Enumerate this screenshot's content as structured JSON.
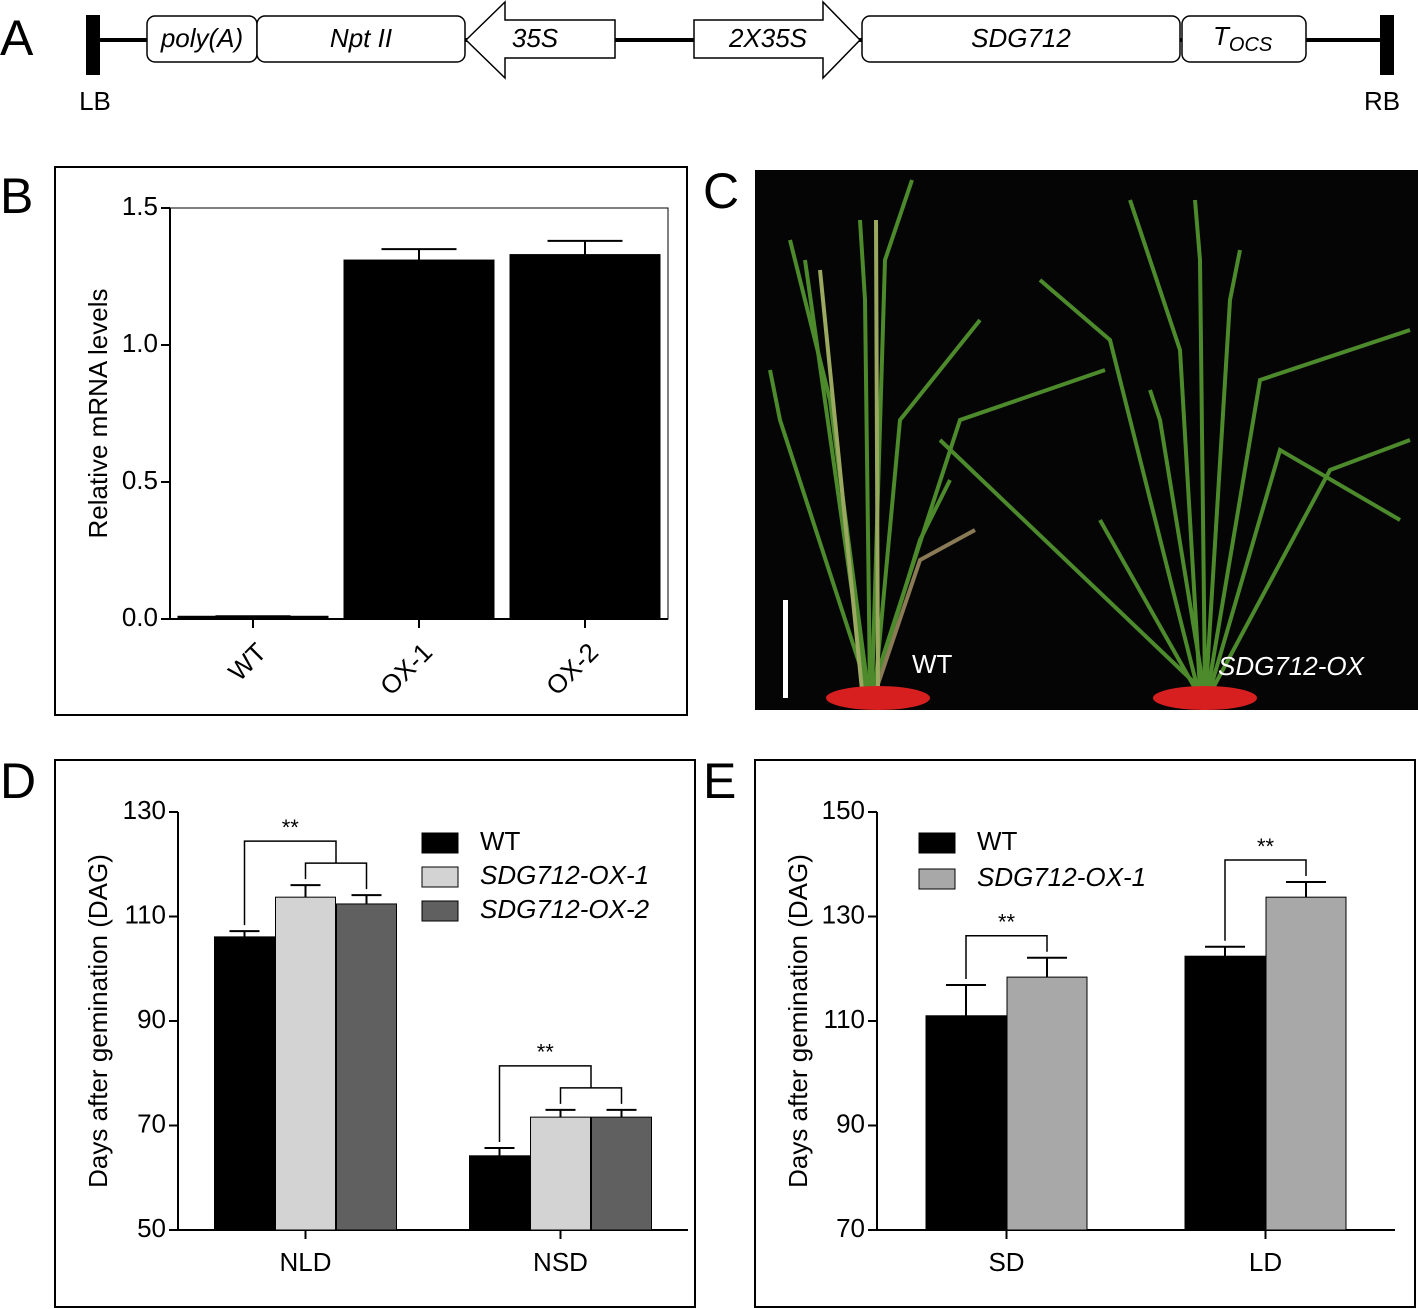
{
  "panel_labels": [
    "A",
    "B",
    "C",
    "D",
    "E"
  ],
  "construct": {
    "left_border": "LB",
    "right_border": "RB",
    "polya": "poly(A)",
    "nptii": "Npt II",
    "promoter": "35S",
    "promoter2": "2X35S",
    "gene": "SDG712",
    "terminator": "T",
    "terminator_sub": "OCS"
  },
  "photo": {
    "labels": [
      "WT",
      "SDG712-OX"
    ]
  },
  "chart_data": [
    {
      "type": "bar",
      "ylabel": "Relative mRNA levels",
      "categories": [
        "WT",
        "OX-1",
        "OX-2"
      ],
      "values": [
        0.01,
        1.31,
        1.33
      ],
      "errors": [
        0,
        0.04,
        0.05
      ],
      "color": "#000000",
      "ylim": [
        0,
        1.5
      ],
      "yticks": [
        {
          "value": 0,
          "label": "0.0"
        },
        0.5,
        {
          "value": 1,
          "label": "1.0"
        },
        1.5
      ]
    },
    {
      "type": "bar",
      "ylabel": "Days after gemination (DAG)",
      "categories": [
        "NLD",
        "NSD"
      ],
      "series": [
        {
          "name": "WT",
          "color": "#000000",
          "values": [
            106.1,
            64.2
          ],
          "errors": [
            1.1,
            1.5
          ]
        },
        {
          "name": "SDG712-OX-1",
          "color": "#d3d3d3",
          "values": [
            113.7,
            71.6
          ],
          "errors": [
            2.3,
            1.4
          ]
        },
        {
          "name": "SDG712-OX-2",
          "color": "#606060",
          "values": [
            112.4,
            71.6
          ],
          "errors": [
            1.7,
            1.4
          ]
        }
      ],
      "significance": [
        "**",
        "**"
      ],
      "legend": "upper right",
      "ylim": [
        50,
        130
      ],
      "yticks": [
        50,
        70,
        90,
        110,
        130
      ]
    },
    {
      "type": "bar",
      "ylabel": "Days after gemination (DAG)",
      "categories": [
        "SD",
        "LD"
      ],
      "series": [
        {
          "name": "WT",
          "color": "#000000",
          "values": [
            111.0,
            122.4
          ],
          "errors": [
            5.9,
            1.8
          ]
        },
        {
          "name": "SDG712-OX-1",
          "color": "#a8a8a8",
          "values": [
            118.4,
            133.7
          ],
          "errors": [
            3.7,
            2.9
          ]
        }
      ],
      "significance": [
        "**",
        "**"
      ],
      "legend": "upper left",
      "ylim": [
        70,
        150
      ],
      "yticks": [
        70,
        90,
        110,
        130,
        150
      ]
    }
  ]
}
